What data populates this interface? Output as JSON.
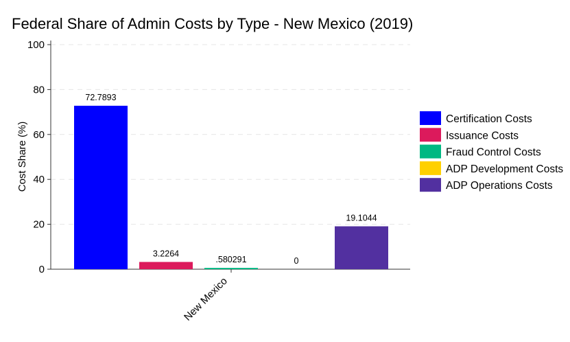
{
  "chart_data": {
    "type": "bar",
    "title": "Federal Share of Admin Costs by Type - New Mexico (2019)",
    "xlabel": "",
    "ylabel": "Cost Share (%)",
    "categories": [
      "New Mexico"
    ],
    "ylim": [
      0,
      100
    ],
    "yticks": [
      0,
      20,
      40,
      60,
      80,
      100
    ],
    "grid": true,
    "legend_position": "right",
    "series": [
      {
        "name": "Certification Costs",
        "values": [
          72.7893
        ],
        "label": "72.7893",
        "color": "#0000ff"
      },
      {
        "name": "Issuance Costs",
        "values": [
          3.2264
        ],
        "label": "3.2264",
        "color": "#dc1a5c"
      },
      {
        "name": "Fraud Control Costs",
        "values": [
          0.580291
        ],
        "label": ".580291",
        "color": "#00b882"
      },
      {
        "name": "ADP Development Costs",
        "values": [
          0
        ],
        "label": "0",
        "color": "#ffd000"
      },
      {
        "name": "ADP Operations Costs",
        "values": [
          19.1044
        ],
        "label": "19.1044",
        "color": "#5230a0"
      }
    ]
  }
}
